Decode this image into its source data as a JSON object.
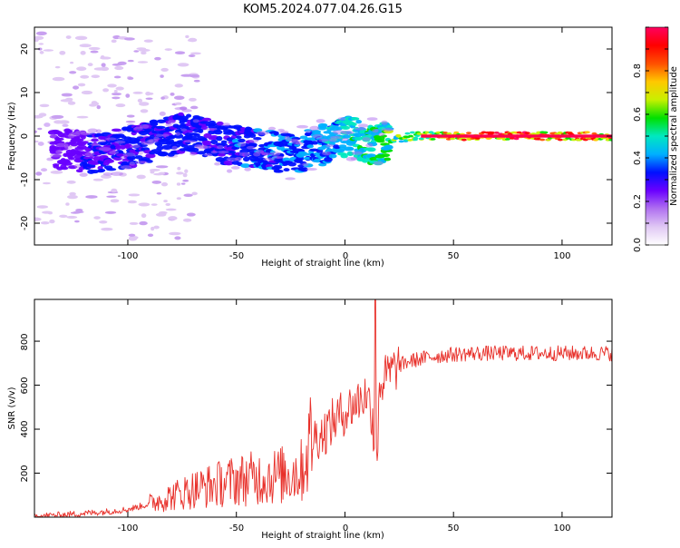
{
  "title": "KOM5.2024.077.04.26.G15",
  "chart_data": [
    {
      "type": "heatmap",
      "title": "KOM5.2024.077.04.26.G15",
      "xlabel": "Height of straight line (km)",
      "ylabel": "Frequency (Hz)",
      "xlim": [
        -143,
        123
      ],
      "ylim": [
        -25,
        25
      ],
      "xticks": [
        -100,
        -50,
        0,
        50,
        100
      ],
      "yticks": [
        -20,
        -10,
        0,
        10,
        20
      ],
      "colorbar": {
        "label": "Normalized spectral amplitude",
        "range": [
          0,
          1
        ],
        "ticks": [
          0.0,
          0.2,
          0.4,
          0.6,
          0.8
        ],
        "colormap": [
          "#ffffff",
          "#e0c8f4",
          "#b070f0",
          "#6a00ff",
          "#0010ff",
          "#00b0ff",
          "#00e8c0",
          "#00e000",
          "#c8f000",
          "#ffc800",
          "#ff5000",
          "#ff0000",
          "#ff0060"
        ]
      },
      "features": [
        {
          "height_km": -130,
          "freq_hz": -3,
          "amp": 0.15
        },
        {
          "height_km": -115,
          "freq_hz": -4,
          "amp": 0.2
        },
        {
          "height_km": -95,
          "freq_hz": -2,
          "amp": 0.25
        },
        {
          "height_km": -75,
          "freq_hz": 1,
          "amp": 0.25
        },
        {
          "height_km": -55,
          "freq_hz": -2,
          "amp": 0.25
        },
        {
          "height_km": -25,
          "freq_hz": -4,
          "amp": 0.3
        },
        {
          "height_km": -10,
          "freq_hz": -2,
          "amp": 0.35
        },
        {
          "height_km": 2,
          "freq_hz": 0,
          "amp": 0.45
        },
        {
          "height_km": 12,
          "freq_hz": -2,
          "amp": 0.5
        },
        {
          "height_km": 30,
          "freq_hz": 0,
          "amp": 0.6
        },
        {
          "height_km": 50,
          "freq_hz": 0,
          "amp": 0.9
        },
        {
          "height_km": 80,
          "freq_hz": 0,
          "amp": 0.95
        },
        {
          "height_km": 110,
          "freq_hz": 0,
          "amp": 0.9
        }
      ]
    },
    {
      "type": "line",
      "xlabel": "Height of straight line (km)",
      "ylabel": "SNR (v/v)",
      "xlim": [
        -143,
        123
      ],
      "ylim": [
        0,
        990
      ],
      "xticks": [
        -100,
        -50,
        0,
        50,
        100
      ],
      "yticks": [
        200,
        400,
        600,
        800
      ],
      "color": "#e8302a",
      "envelope": {
        "x": [
          -143,
          -130,
          -110,
          -100,
          -90,
          -80,
          -70,
          -60,
          -50,
          -40,
          -30,
          -20,
          -15,
          -10,
          -5,
          0,
          5,
          10,
          14,
          16,
          20,
          25,
          30,
          40,
          50,
          60,
          80,
          100,
          123
        ],
        "y": [
          5,
          10,
          25,
          35,
          60,
          90,
          120,
          140,
          160,
          170,
          180,
          200,
          360,
          380,
          440,
          480,
          520,
          560,
          420,
          600,
          650,
          690,
          710,
          730,
          740,
          745,
          745,
          745,
          745
        ]
      },
      "peak": {
        "x": 14,
        "y": 990
      }
    }
  ]
}
